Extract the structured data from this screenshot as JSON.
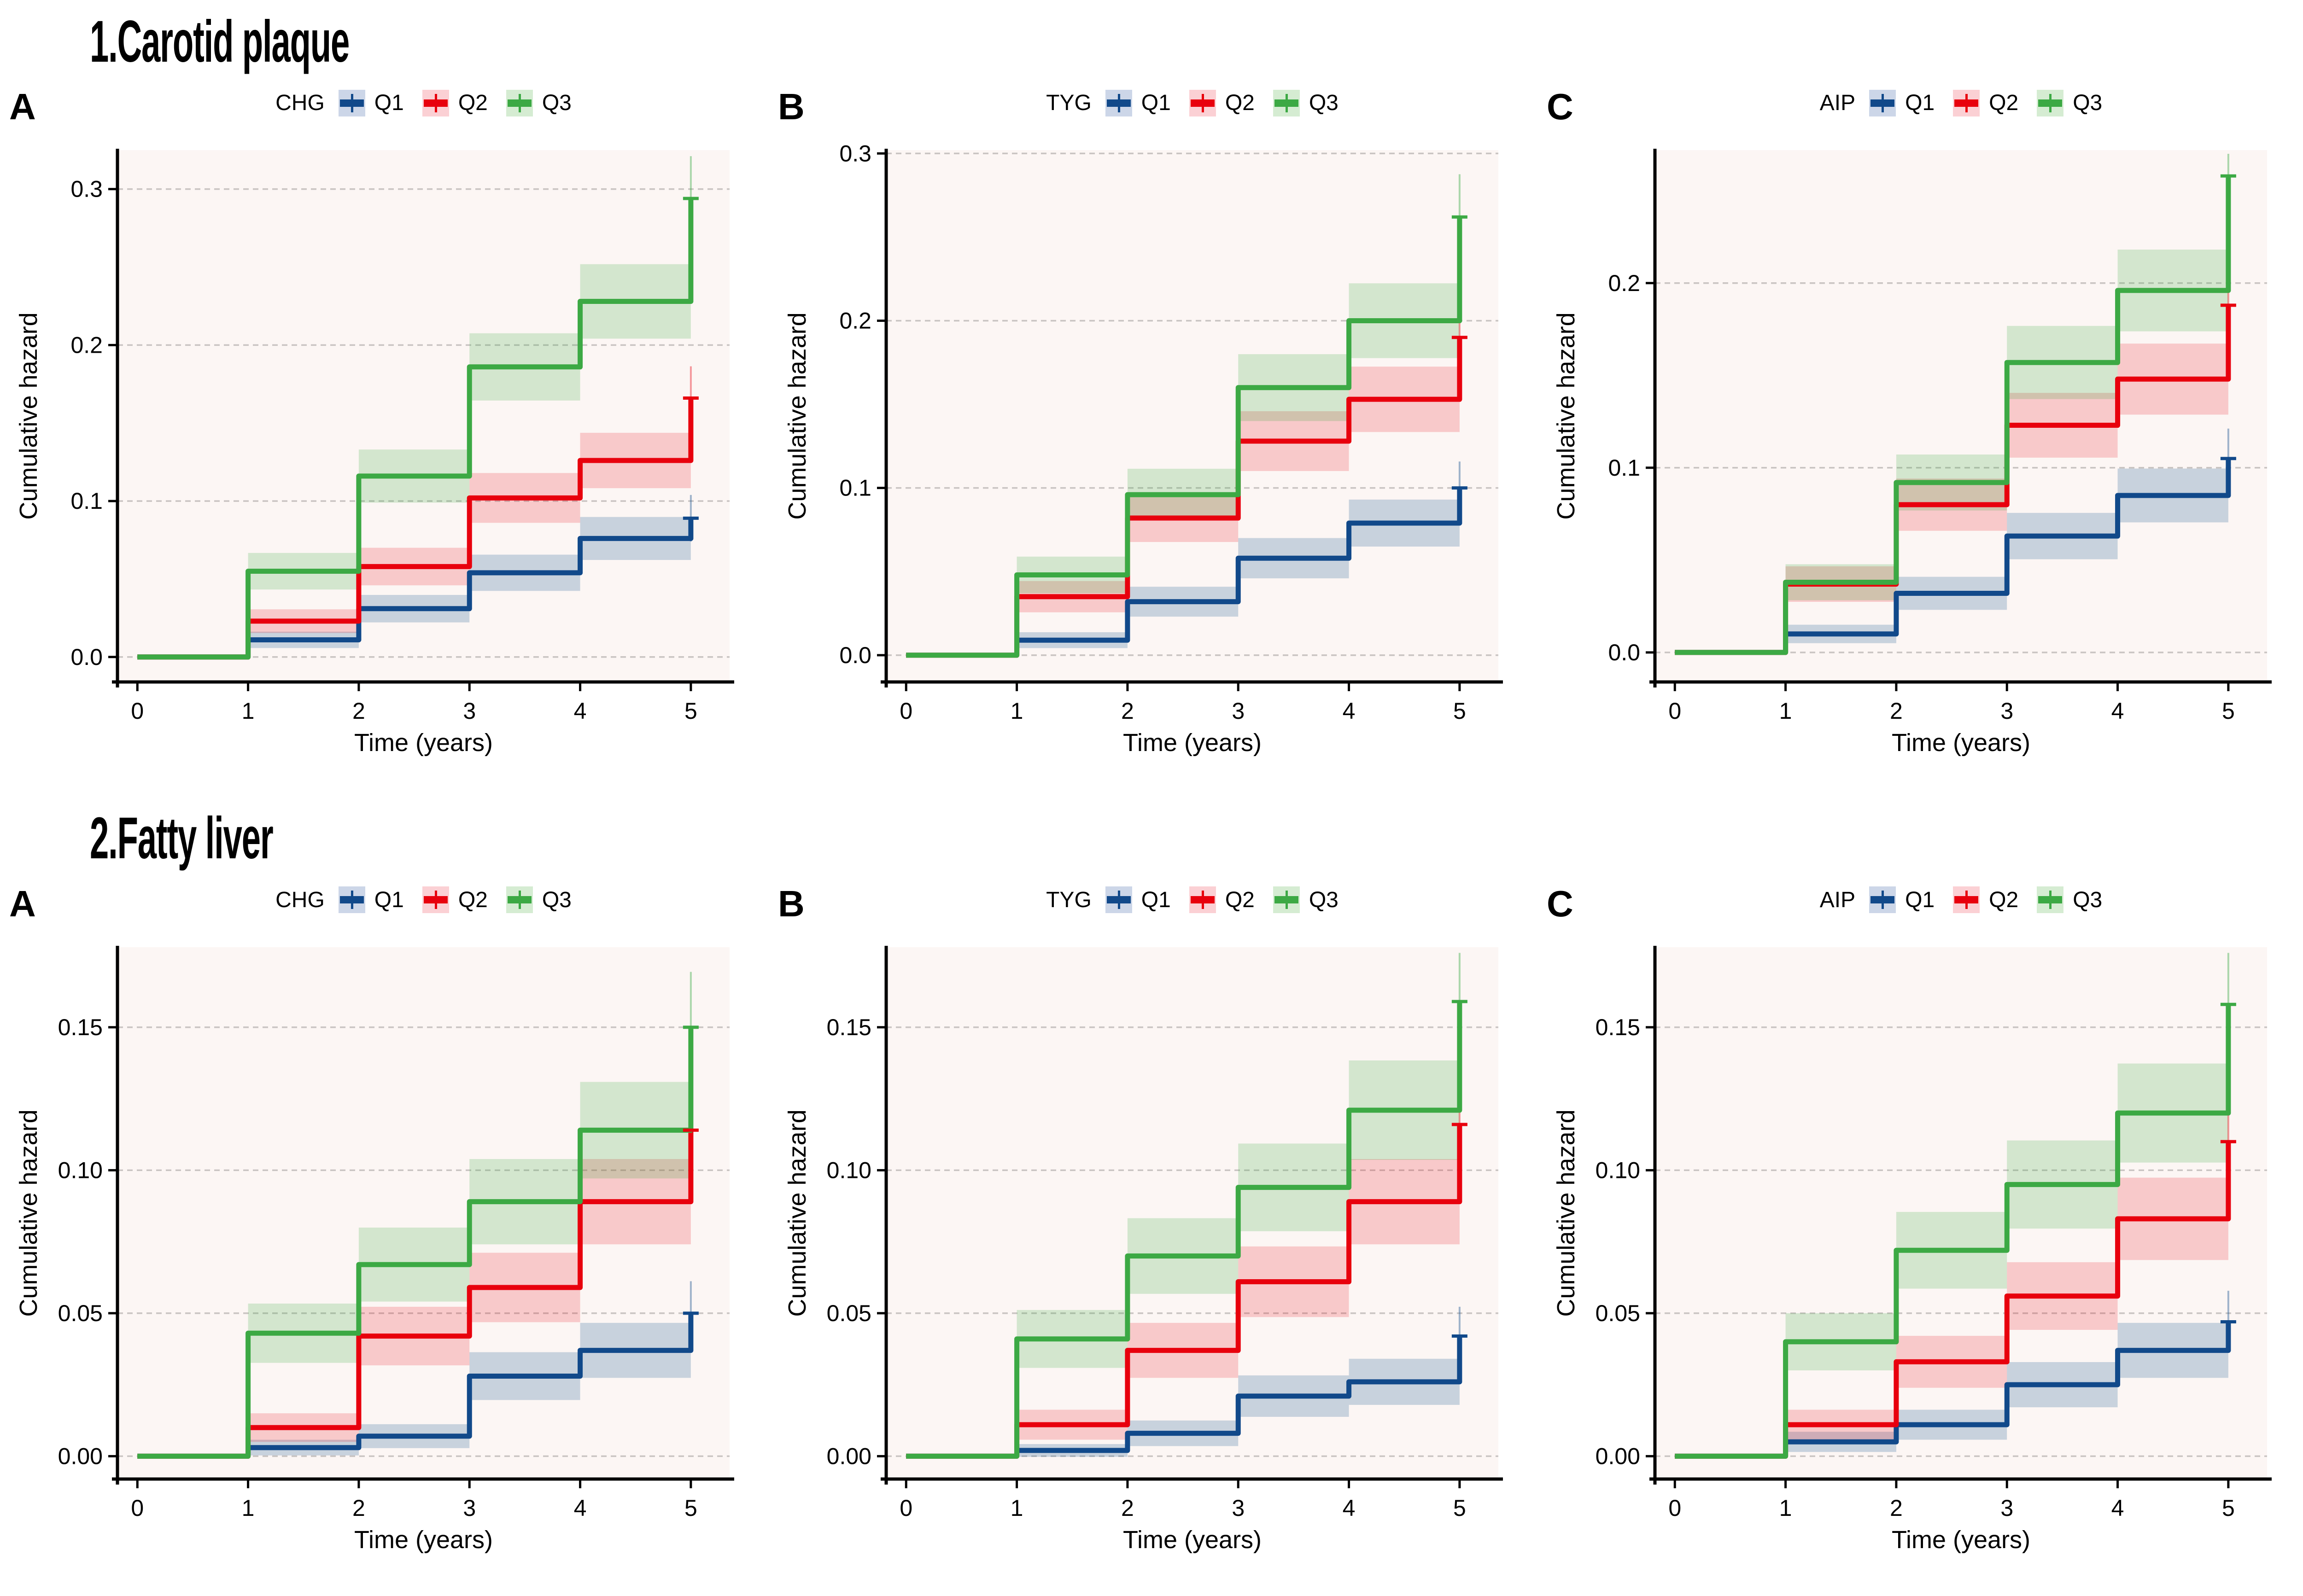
{
  "sections": [
    {
      "title": "1.Carotid plaque"
    },
    {
      "title": "2.Fatty liver"
    }
  ],
  "colors": {
    "q1": {
      "line": "#11498A",
      "band": "rgba(20,80,140,0.22)",
      "band_solid": "#CCD6E8",
      "whisker": "rgba(20,80,140,0.40)"
    },
    "q2": {
      "line": "#E8000D",
      "band": "rgba(232,0,13,0.18)",
      "band_solid": "#FBD0D4",
      "whisker": "rgba(232,0,13,0.38)"
    },
    "q3": {
      "line": "#3CA944",
      "band": "rgba(60,169,68,0.21)",
      "band_solid": "#D5ECD2",
      "whisker": "rgba(60,169,68,0.42)"
    },
    "plot_bg": "#FCF6F4",
    "grid": "#C9C4C2",
    "axis": "#000000"
  },
  "chart_data": [
    {
      "section": 0,
      "panel_label": "A",
      "type": "line",
      "subtype": "cumulative-hazard-step",
      "legend_title": "CHG",
      "xlabel": "Time (years)",
      "ylabel": "Cumulative hazard",
      "x_event_times": [
        1,
        2,
        3,
        4,
        5
      ],
      "xticks": [
        0,
        1,
        2,
        3,
        4,
        5
      ],
      "xtick_labels": [
        "0",
        "1",
        "2",
        "3",
        "4",
        "5"
      ],
      "yticks": [
        0.0,
        0.1,
        0.2,
        0.3
      ],
      "ytick_labels": [
        "0.0",
        "0.1",
        "0.2",
        "0.3"
      ],
      "xlim": [
        -0.18,
        5.35
      ],
      "ylim": [
        -0.016,
        0.325
      ],
      "ci_halfwidth_factor": 0.05,
      "series": [
        {
          "name": "Q1",
          "color_key": "q1",
          "values": [
            0.011,
            0.031,
            0.054,
            0.076,
            0.089
          ]
        },
        {
          "name": "Q2",
          "color_key": "q2",
          "values": [
            0.023,
            0.058,
            0.102,
            0.126,
            0.166
          ]
        },
        {
          "name": "Q3",
          "color_key": "q3",
          "values": [
            0.055,
            0.116,
            0.186,
            0.228,
            0.294
          ]
        }
      ]
    },
    {
      "section": 0,
      "panel_label": "B",
      "type": "line",
      "subtype": "cumulative-hazard-step",
      "legend_title": "TYG",
      "xlabel": "Time (years)",
      "ylabel": "Cumulative hazard",
      "x_event_times": [
        1,
        2,
        3,
        4,
        5
      ],
      "xticks": [
        0,
        1,
        2,
        3,
        4,
        5
      ],
      "xtick_labels": [
        "0",
        "1",
        "2",
        "3",
        "4",
        "5"
      ],
      "yticks": [
        0.0,
        0.1,
        0.2,
        0.3
      ],
      "ytick_labels": [
        "0.0",
        "0.1",
        "0.2",
        "0.3"
      ],
      "xlim": [
        -0.18,
        5.35
      ],
      "ylim": [
        -0.016,
        0.302
      ],
      "ci_halfwidth_factor": 0.05,
      "series": [
        {
          "name": "Q1",
          "color_key": "q1",
          "values": [
            0.009,
            0.032,
            0.058,
            0.079,
            0.1
          ]
        },
        {
          "name": "Q2",
          "color_key": "q2",
          "values": [
            0.035,
            0.082,
            0.128,
            0.153,
            0.19
          ]
        },
        {
          "name": "Q3",
          "color_key": "q3",
          "values": [
            0.048,
            0.096,
            0.16,
            0.2,
            0.262
          ]
        }
      ]
    },
    {
      "section": 0,
      "panel_label": "C",
      "type": "line",
      "subtype": "cumulative-hazard-step",
      "legend_title": "AIP",
      "xlabel": "Time (years)",
      "ylabel": "Cumulative hazard",
      "x_event_times": [
        1,
        2,
        3,
        4,
        5
      ],
      "xticks": [
        0,
        1,
        2,
        3,
        4,
        5
      ],
      "xtick_labels": [
        "0",
        "1",
        "2",
        "3",
        "4",
        "5"
      ],
      "yticks": [
        0.0,
        0.1,
        0.2
      ],
      "ytick_labels": [
        "0.0",
        "0.1",
        "0.2"
      ],
      "xlim": [
        -0.18,
        5.35
      ],
      "ylim": [
        -0.016,
        0.272
      ],
      "ci_halfwidth_factor": 0.05,
      "series": [
        {
          "name": "Q1",
          "color_key": "q1",
          "values": [
            0.01,
            0.032,
            0.063,
            0.085,
            0.105
          ]
        },
        {
          "name": "Q2",
          "color_key": "q2",
          "values": [
            0.037,
            0.08,
            0.123,
            0.148,
            0.188
          ]
        },
        {
          "name": "Q3",
          "color_key": "q3",
          "values": [
            0.038,
            0.092,
            0.157,
            0.196,
            0.258
          ]
        }
      ]
    },
    {
      "section": 1,
      "panel_label": "A",
      "type": "line",
      "subtype": "cumulative-hazard-step",
      "legend_title": "CHG",
      "xlabel": "Time (years)",
      "ylabel": "Cumulative hazard",
      "x_event_times": [
        1,
        2,
        3,
        4,
        5
      ],
      "xticks": [
        0,
        1,
        2,
        3,
        4,
        5
      ],
      "xtick_labels": [
        "0",
        "1",
        "2",
        "3",
        "4",
        "5"
      ],
      "yticks": [
        0.0,
        0.05,
        0.1,
        0.15
      ],
      "ytick_labels": [
        "0.00",
        "0.05",
        "0.10",
        "0.15"
      ],
      "xlim": [
        -0.18,
        5.35
      ],
      "ylim": [
        -0.008,
        0.178
      ],
      "ci_halfwidth_factor": 0.05,
      "series": [
        {
          "name": "Q1",
          "color_key": "q1",
          "values": [
            0.003,
            0.007,
            0.028,
            0.037,
            0.05
          ]
        },
        {
          "name": "Q2",
          "color_key": "q2",
          "values": [
            0.01,
            0.042,
            0.059,
            0.089,
            0.114
          ]
        },
        {
          "name": "Q3",
          "color_key": "q3",
          "values": [
            0.043,
            0.067,
            0.089,
            0.114,
            0.15
          ]
        }
      ]
    },
    {
      "section": 1,
      "panel_label": "B",
      "type": "line",
      "subtype": "cumulative-hazard-step",
      "legend_title": "TYG",
      "xlabel": "Time (years)",
      "ylabel": "Cumulative hazard",
      "x_event_times": [
        1,
        2,
        3,
        4,
        5
      ],
      "xticks": [
        0,
        1,
        2,
        3,
        4,
        5
      ],
      "xtick_labels": [
        "0",
        "1",
        "2",
        "3",
        "4",
        "5"
      ],
      "yticks": [
        0.0,
        0.05,
        0.1,
        0.15
      ],
      "ytick_labels": [
        "0.00",
        "0.05",
        "0.10",
        "0.15"
      ],
      "xlim": [
        -0.18,
        5.35
      ],
      "ylim": [
        -0.008,
        0.178
      ],
      "ci_halfwidth_factor": 0.05,
      "series": [
        {
          "name": "Q1",
          "color_key": "q1",
          "values": [
            0.002,
            0.008,
            0.021,
            0.026,
            0.042
          ]
        },
        {
          "name": "Q2",
          "color_key": "q2",
          "values": [
            0.011,
            0.037,
            0.061,
            0.089,
            0.116
          ]
        },
        {
          "name": "Q3",
          "color_key": "q3",
          "values": [
            0.041,
            0.07,
            0.094,
            0.121,
            0.159
          ]
        }
      ]
    },
    {
      "section": 1,
      "panel_label": "C",
      "type": "line",
      "subtype": "cumulative-hazard-step",
      "legend_title": "AIP",
      "xlabel": "Time (years)",
      "ylabel": "Cumulative hazard",
      "x_event_times": [
        1,
        2,
        3,
        4,
        5
      ],
      "xticks": [
        0,
        1,
        2,
        3,
        4,
        5
      ],
      "xtick_labels": [
        "0",
        "1",
        "2",
        "3",
        "4",
        "5"
      ],
      "yticks": [
        0.0,
        0.05,
        0.1,
        0.15
      ],
      "ytick_labels": [
        "0.00",
        "0.05",
        "0.10",
        "0.15"
      ],
      "xlim": [
        -0.18,
        5.35
      ],
      "ylim": [
        -0.008,
        0.178
      ],
      "ci_halfwidth_factor": 0.05,
      "series": [
        {
          "name": "Q1",
          "color_key": "q1",
          "values": [
            0.005,
            0.011,
            0.025,
            0.037,
            0.047
          ]
        },
        {
          "name": "Q2",
          "color_key": "q2",
          "values": [
            0.011,
            0.033,
            0.056,
            0.083,
            0.11
          ]
        },
        {
          "name": "Q3",
          "color_key": "q3",
          "values": [
            0.04,
            0.072,
            0.095,
            0.12,
            0.158
          ]
        }
      ]
    }
  ]
}
